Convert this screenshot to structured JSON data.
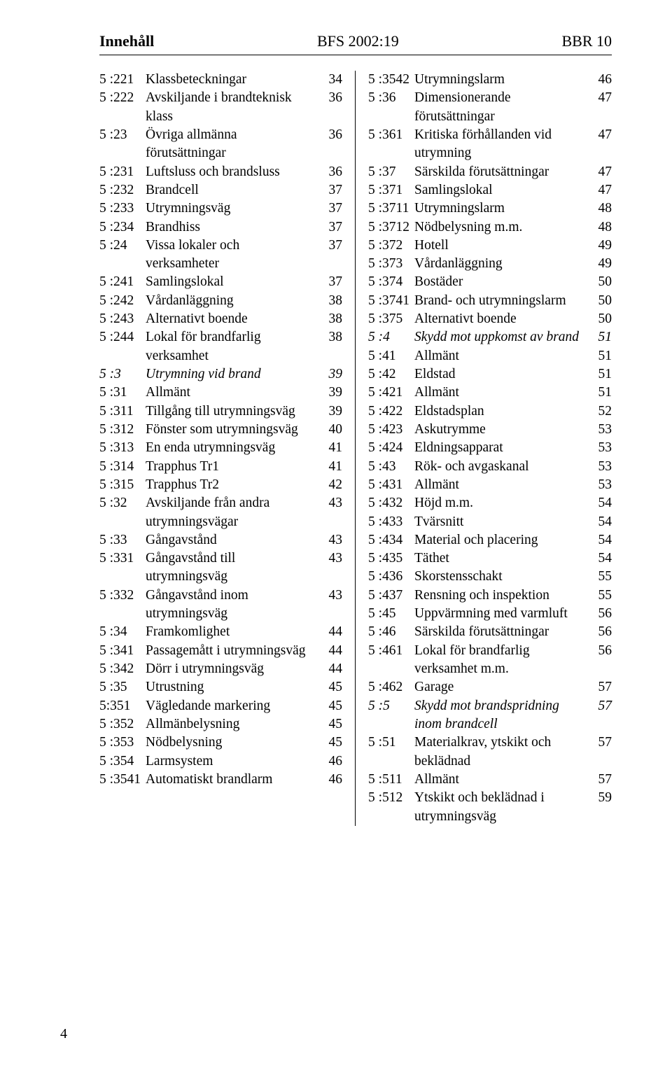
{
  "header": {
    "left": "Innehåll",
    "center": "BFS 2002:19",
    "right": "BBR 10"
  },
  "footer": {
    "page_number": "4"
  },
  "left_col": [
    {
      "code": "5 :221",
      "label": "Klassbeteckningar",
      "page": "34"
    },
    {
      "code": "5 :222",
      "label": "Avskiljande i brandteknisk klass",
      "page": "36"
    },
    {
      "code": "5 :23",
      "label": "Övriga allmänna förutsättningar",
      "page": "36"
    },
    {
      "code": "5 :231",
      "label": "Luftsluss och brandsluss",
      "page": "36"
    },
    {
      "code": "5 :232",
      "label": "Brandcell",
      "page": "37"
    },
    {
      "code": "5 :233",
      "label": "Utrymningsväg",
      "page": "37"
    },
    {
      "code": "5 :234",
      "label": "Brandhiss",
      "page": "37"
    },
    {
      "code": "5 :24",
      "label": "Vissa lokaler och verksamheter",
      "page": "37"
    },
    {
      "code": "5 :241",
      "label": "Samlingslokal",
      "page": "37"
    },
    {
      "code": "5 :242",
      "label": "Vårdanläggning",
      "page": "38"
    },
    {
      "code": "5 :243",
      "label": "Alternativt boende",
      "page": "38"
    },
    {
      "code": "5 :244",
      "label": "Lokal för brandfarlig verksamhet",
      "page": "38"
    },
    {
      "code": "5 :3",
      "label": "Utrymning vid brand",
      "page": "39",
      "italic": true
    },
    {
      "code": "5 :31",
      "label": "Allmänt",
      "page": "39"
    },
    {
      "code": "5 :311",
      "label": "Tillgång till utrymningsväg",
      "page": "39"
    },
    {
      "code": "5 :312",
      "label": "Fönster som utrymningsväg",
      "page": "40"
    },
    {
      "code": "5 :313",
      "label": "En enda utrymningsväg",
      "page": "41"
    },
    {
      "code": "5 :314",
      "label": "Trapphus Tr1",
      "page": "41"
    },
    {
      "code": "5 :315",
      "label": "Trapphus Tr2",
      "page": "42"
    },
    {
      "code": "5 :32",
      "label": "Avskiljande från andra utrymningsvägar",
      "page": "43"
    },
    {
      "code": "5 :33",
      "label": "Gångavstånd",
      "page": "43"
    },
    {
      "code": "5 :331",
      "label": "Gångavstånd till utrymningsväg",
      "page": "43"
    },
    {
      "code": "5 :332",
      "label": "Gångavstånd inom utrymningsväg",
      "page": "43"
    },
    {
      "code": "5 :34",
      "label": "Framkomlighet",
      "page": "44"
    },
    {
      "code": "5 :341",
      "label": "Passagemått i utrymningsväg",
      "page": "44"
    },
    {
      "code": "5 :342",
      "label": "Dörr i utrymningsväg",
      "page": "44"
    },
    {
      "code": "5 :35",
      "label": "Utrustning",
      "page": "45"
    },
    {
      "code": "5:351",
      "label": "Vägledande markering",
      "page": "45"
    },
    {
      "code": "5 :352",
      "label": "Allmänbelysning",
      "page": "45"
    },
    {
      "code": "5 :353",
      "label": "Nödbelysning",
      "page": "45"
    },
    {
      "code": "5 :354",
      "label": "Larmsystem",
      "page": "46"
    },
    {
      "code": "5 :3541",
      "label": "Automatiskt brandlarm",
      "page": "46"
    }
  ],
  "right_col": [
    {
      "code": "5 :3542",
      "label": "Utrymningslarm",
      "page": "46"
    },
    {
      "code": "5 :36",
      "label": "Dimensionerande förutsättningar",
      "page": "47"
    },
    {
      "code": "5 :361",
      "label": "Kritiska förhållanden vid utrymning",
      "page": "47"
    },
    {
      "code": "5 :37",
      "label": "Särskilda förutsättningar",
      "page": "47"
    },
    {
      "code": "5 :371",
      "label": "Samlingslokal",
      "page": "47"
    },
    {
      "code": "5 :3711",
      "label": "Utrymningslarm",
      "page": "48"
    },
    {
      "code": "5 :3712",
      "label": "Nödbelysning m.m.",
      "page": "48"
    },
    {
      "code": "5 :372",
      "label": "Hotell",
      "page": "49"
    },
    {
      "code": "5 :373",
      "label": "Vårdanläggning",
      "page": "49"
    },
    {
      "code": "5 :374",
      "label": "Bostäder",
      "page": "50"
    },
    {
      "code": "5 :3741",
      "label": "Brand- och utrymningslarm",
      "page": "50"
    },
    {
      "code": "5 :375",
      "label": "Alternativt boende",
      "page": "50"
    },
    {
      "code": "5 :4",
      "label": "Skydd mot uppkomst av brand",
      "page": "51",
      "italic": true
    },
    {
      "code": "5 :41",
      "label": "Allmänt",
      "page": "51"
    },
    {
      "code": "5 :42",
      "label": "Eldstad",
      "page": "51"
    },
    {
      "code": "5 :421",
      "label": "Allmänt",
      "page": "51"
    },
    {
      "code": "5 :422",
      "label": "Eldstadsplan",
      "page": "52"
    },
    {
      "code": "5 :423",
      "label": "Askutrymme",
      "page": "53"
    },
    {
      "code": "5 :424",
      "label": "Eldningsapparat",
      "page": "53"
    },
    {
      "code": "5 :43",
      "label": "Rök- och avgaskanal",
      "page": "53"
    },
    {
      "code": "5 :431",
      "label": "Allmänt",
      "page": "53"
    },
    {
      "code": "5 :432",
      "label": "Höjd m.m.",
      "page": "54"
    },
    {
      "code": "5 :433",
      "label": "Tvärsnitt",
      "page": "54"
    },
    {
      "code": "5 :434",
      "label": "Material och placering",
      "page": "54"
    },
    {
      "code": "5 :435",
      "label": "Täthet",
      "page": "54"
    },
    {
      "code": "5 :436",
      "label": "Skorstensschakt",
      "page": "55"
    },
    {
      "code": "5 :437",
      "label": "Rensning och inspektion",
      "page": "55"
    },
    {
      "code": "5 :45",
      "label": "Uppvärmning med varmluft",
      "page": "56"
    },
    {
      "code": "5 :46",
      "label": "Särskilda förutsättningar",
      "page": "56"
    },
    {
      "code": "5 :461",
      "label": "Lokal för brandfarlig verksamhet m.m.",
      "page": "56"
    },
    {
      "code": "5 :462",
      "label": "Garage",
      "page": "57"
    },
    {
      "code": "5 :5",
      "label": "Skydd mot brandspridning inom brandcell",
      "page": "57",
      "italic": true
    },
    {
      "code": "5 :51",
      "label": "Materialkrav, ytskikt och beklädnad",
      "page": "57"
    },
    {
      "code": "5 :511",
      "label": "Allmänt",
      "page": "57"
    },
    {
      "code": "5 :512",
      "label": "Ytskikt och beklädnad i utrymningsväg",
      "page": "59"
    }
  ]
}
